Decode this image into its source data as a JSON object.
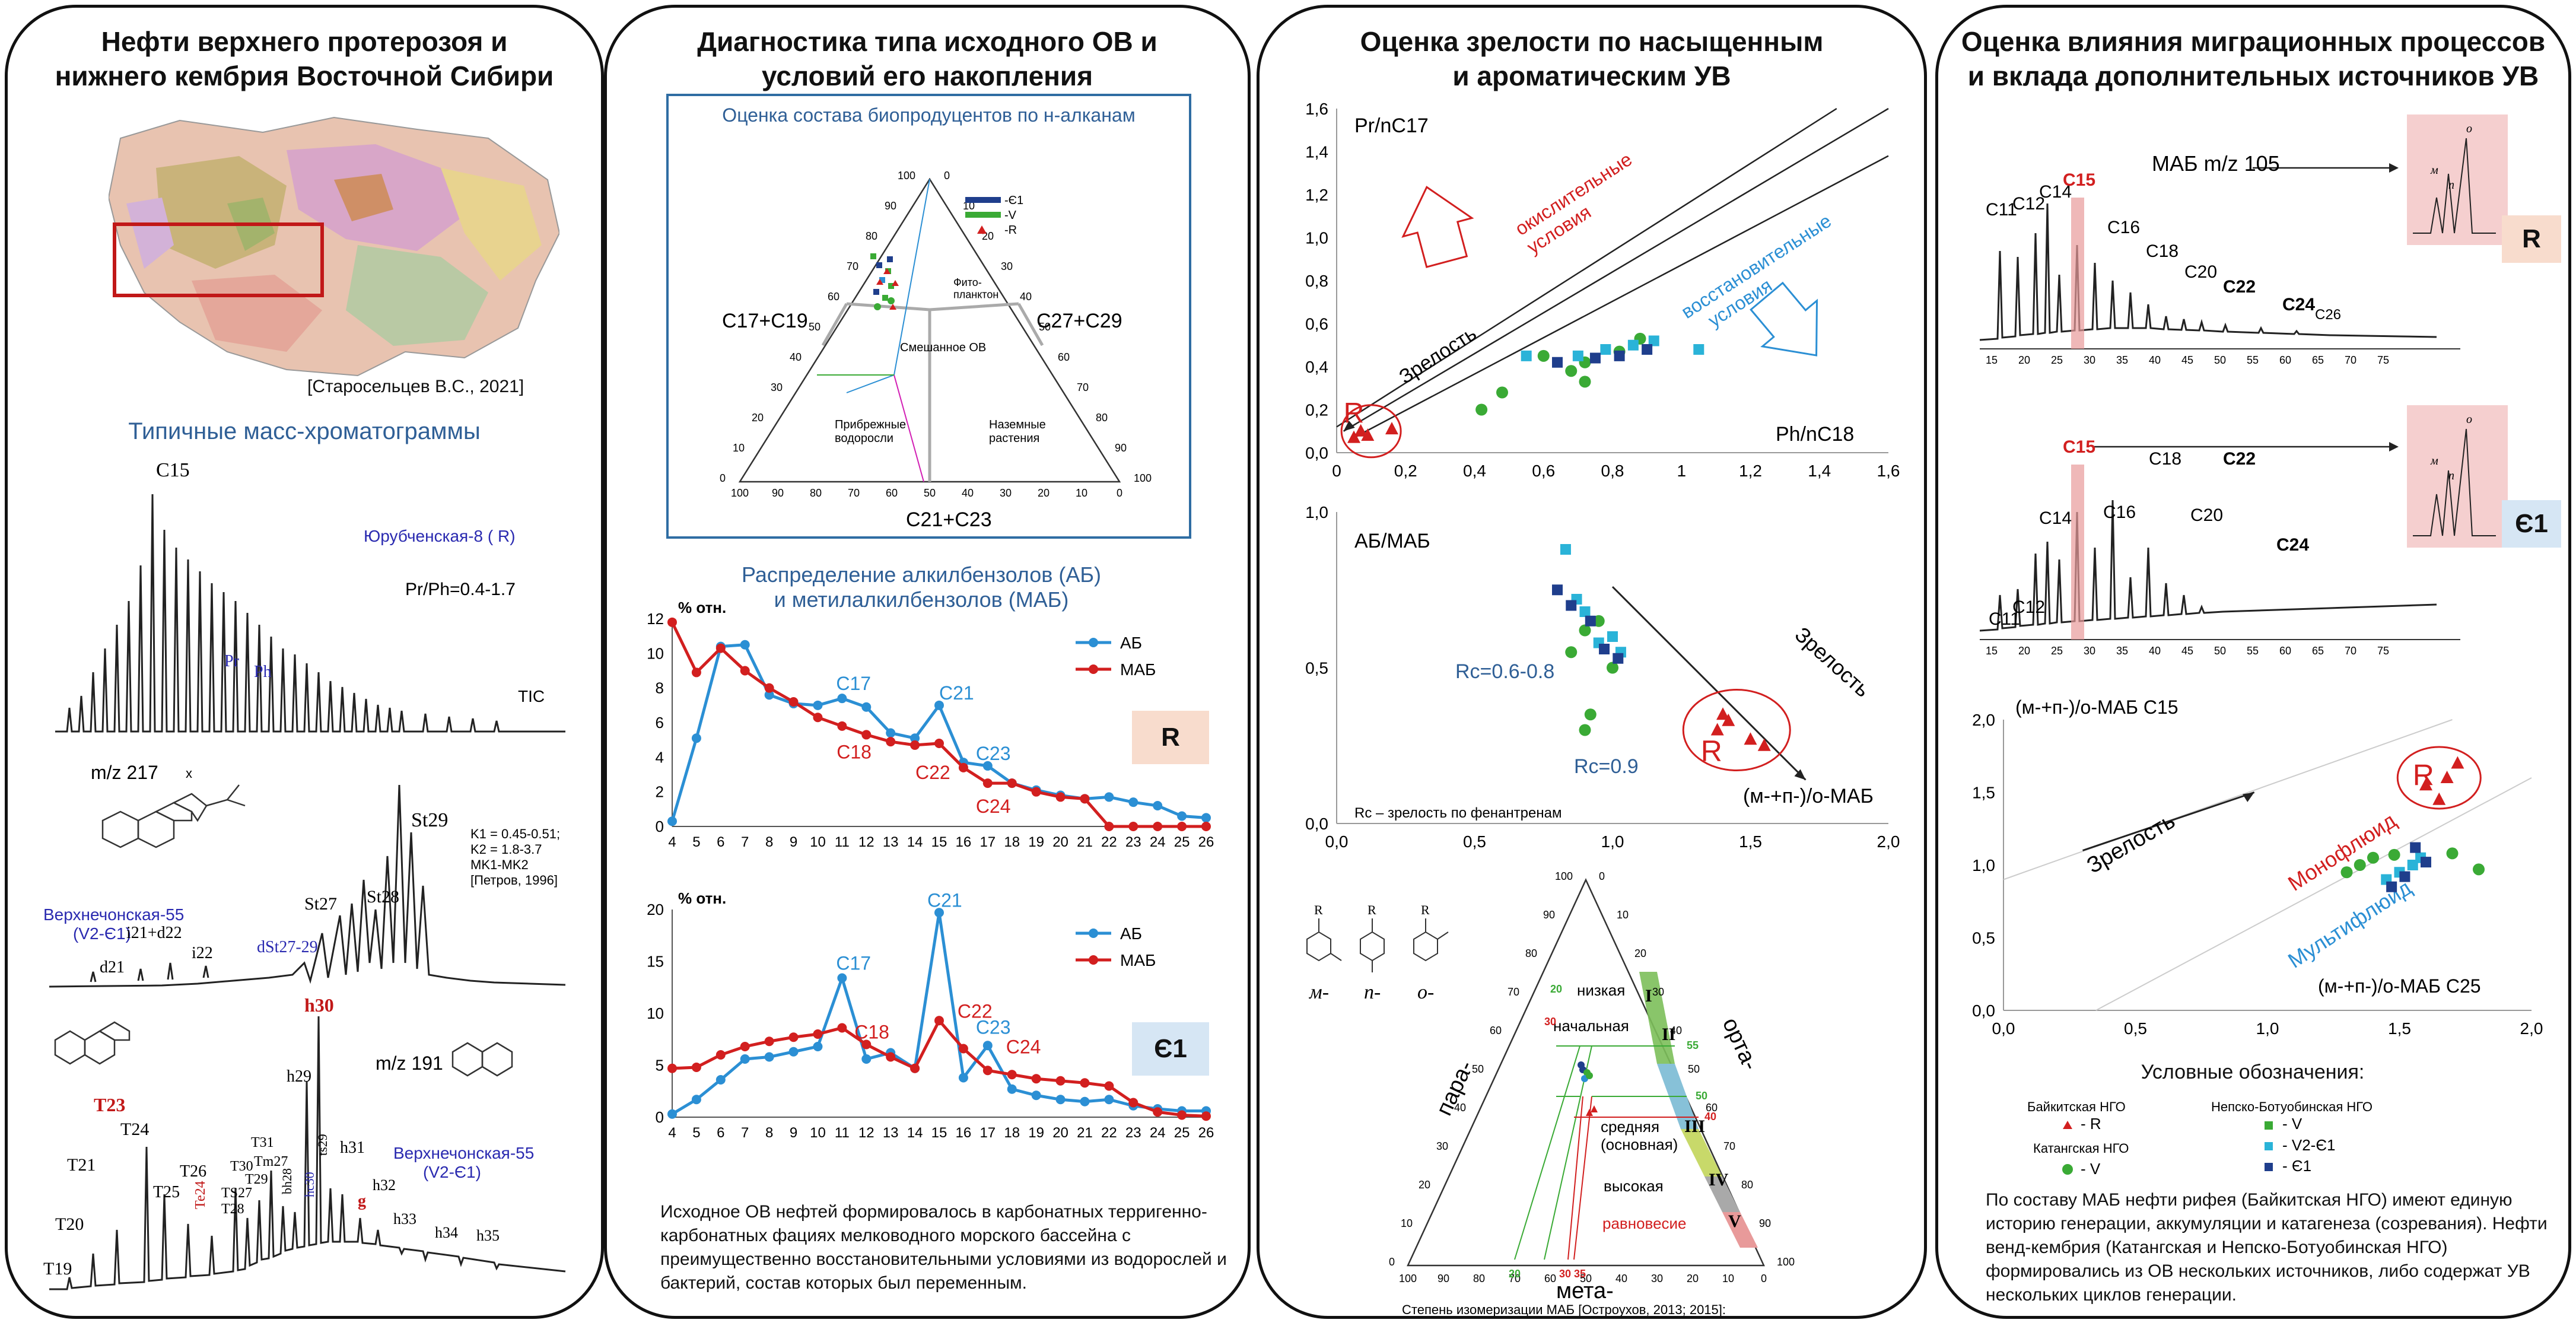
{
  "panels": [
    {
      "title": "Нефти верхнего протерозоя и\nнижнего кембрия Восточной Сибири"
    },
    {
      "title": "Диагностика типа исходного ОВ и\nусловий  его накопления"
    },
    {
      "title": "Оценка зрелости по насыщенным\nи ароматическим УВ"
    },
    {
      "title": "Оценка влияния миграционных процессов\nи вклада дополнительных источников УВ"
    }
  ],
  "p1": {
    "map_citation": "[Старосельцев В.С., 2021]",
    "chromatograms_heading": "Типичные масс-хроматограммы",
    "tic": {
      "c15": "C15",
      "well": "Юрубченская-8 ( R)",
      "ratio": "Pr/Ph=0.4-1.7",
      "pr": "Pr",
      "ph": "Ph",
      "tic": "TIC"
    },
    "m217": {
      "title": "m/z 217",
      "well": "Верхнечонская-55",
      "age": "(V2-Є1)",
      "k1": "K1 = 0.45-0.51;",
      "k2": "K2 = 1.8-3.7",
      "mk": "MK1-MK2",
      "ref": "[Петров, 1996]",
      "st29": "St29",
      "st27": "St27",
      "st28": "St28",
      "i21": "i21+d22",
      "i22": "i22",
      "d21": "d21",
      "dst": "dSt27-29",
      "x": "x"
    },
    "m191": {
      "title": "m/z 191",
      "well": "Верхнечонская-55",
      "age": "(V2-Є1)",
      "h30": "h30",
      "t23": "T23",
      "t24": "T24",
      "t21": "T21",
      "t20": "T20",
      "t19": "T19",
      "t25": "T25",
      "t26": "T26",
      "te24": "Te24",
      "t27": "TS27",
      "t28": "T28",
      "t29": "T29",
      "t30": "T30",
      "t31": "T31",
      "tm27": "Tm27",
      "h29": "h29",
      "bh28": "bh28",
      "ts29": "ts29",
      "h31": "h31",
      "g": "g",
      "h32": "h32",
      "h33": "h33",
      "h34": "h34",
      "h35": "h35",
      "hc30": "hc30"
    }
  },
  "p2": {
    "ternary": {
      "title": "Оценка состава биопродуцентов по н-алканам",
      "left": "C17+C19",
      "right": "C27+C29",
      "bottom": "C21+C23",
      "phyto": "Фито-\nпланктон",
      "mixed": "Смешанное ОВ",
      "coastal": "Прибрежные\nводоросли",
      "land": "Наземные\nрастения",
      "legend": [
        "-Є1",
        "-V",
        "-R"
      ],
      "ticks": [
        "0",
        "10",
        "20",
        "30",
        "40",
        "50",
        "60",
        "70",
        "80",
        "90",
        "100"
      ]
    },
    "ab_heading": "Распределение алкилбензолов (АБ)\nи метилалкилбензолов (МАБ)",
    "badge_r": "R",
    "badge_e": "Є1",
    "summary": "Исходное ОВ нефтей формировалось в карбонатных терригенно-карбонатных фациях мелководного морского бассейна с преимущественно восстановительными условиями из водорослей и бактерий, состав которых был переменным."
  },
  "chart_data": [
    {
      "type": "line",
      "title": "",
      "ylabel": "% отн.",
      "xlabel": "",
      "x": [
        4,
        5,
        6,
        7,
        8,
        9,
        10,
        11,
        12,
        13,
        14,
        15,
        16,
        17,
        18,
        19,
        20,
        21,
        22,
        23,
        24,
        25,
        26
      ],
      "ylim": [
        0,
        12
      ],
      "series": [
        {
          "name": "АБ",
          "values": [
            0.3,
            5.1,
            10.4,
            10.5,
            7.6,
            7.1,
            7.0,
            7.4,
            6.9,
            5.4,
            5.1,
            7.0,
            3.7,
            3.5,
            2.5,
            2.1,
            1.8,
            1.6,
            1.7,
            1.4,
            1.2,
            0.6,
            0.5
          ]
        },
        {
          "name": "МАБ",
          "values": [
            11.8,
            8.9,
            10.3,
            9.0,
            8.0,
            7.2,
            6.3,
            5.8,
            5.3,
            4.9,
            4.7,
            4.8,
            3.4,
            2.5,
            2.5,
            2.0,
            1.7,
            1.6,
            0.0,
            0.0,
            0.0,
            0.0,
            0.0
          ]
        }
      ],
      "annotations": [
        "C17",
        "C18",
        "C21",
        "C22",
        "C23",
        "C24"
      ],
      "badge": "R"
    },
    {
      "type": "line",
      "title": "",
      "ylabel": "% отн.",
      "xlabel": "",
      "x": [
        4,
        5,
        6,
        7,
        8,
        9,
        10,
        11,
        12,
        13,
        14,
        15,
        16,
        17,
        18,
        19,
        20,
        21,
        22,
        23,
        24,
        25,
        26
      ],
      "ylim": [
        0,
        20
      ],
      "series": [
        {
          "name": "АБ",
          "values": [
            0.3,
            1.7,
            3.6,
            5.6,
            5.8,
            6.3,
            6.8,
            13.4,
            5.6,
            6.2,
            4.7,
            19.7,
            3.8,
            6.9,
            2.7,
            2.1,
            1.7,
            1.5,
            1.7,
            1.1,
            0.8,
            0.6,
            0.6
          ]
        },
        {
          "name": "МАБ",
          "values": [
            4.7,
            4.8,
            6.0,
            6.8,
            7.3,
            7.7,
            8.0,
            8.6,
            7.0,
            5.8,
            4.7,
            9.3,
            6.6,
            4.5,
            4.1,
            3.7,
            3.5,
            3.3,
            3.0,
            1.4,
            0.5,
            0.2,
            0.1
          ]
        }
      ],
      "annotations": [
        "C17",
        "C18",
        "C21",
        "C22",
        "C23",
        "C24"
      ],
      "badge": "Є1"
    },
    {
      "type": "scatter",
      "title": "",
      "xlabel": "Ph/nC18",
      "ylabel": "Pr/nC17",
      "xlim": [
        0,
        1.6
      ],
      "ylim": [
        0,
        1.6
      ],
      "series": [
        {
          "name": "R",
          "points": [
            [
              0.05,
              0.07
            ],
            [
              0.07,
              0.1
            ],
            [
              0.09,
              0.08
            ],
            [
              0.16,
              0.11
            ]
          ]
        },
        {
          "name": "V",
          "points": [
            [
              0.42,
              0.2
            ],
            [
              0.48,
              0.28
            ],
            [
              0.6,
              0.45
            ],
            [
              0.68,
              0.38
            ],
            [
              0.72,
              0.42
            ],
            [
              0.82,
              0.47
            ],
            [
              0.88,
              0.53
            ],
            [
              0.72,
              0.33
            ]
          ]
        },
        {
          "name": "V2-Є1",
          "points": [
            [
              0.55,
              0.45
            ],
            [
              0.7,
              0.45
            ],
            [
              0.78,
              0.48
            ],
            [
              0.86,
              0.5
            ],
            [
              0.92,
              0.52
            ],
            [
              1.05,
              0.48
            ]
          ]
        },
        {
          "name": "Є1",
          "points": [
            [
              0.64,
              0.42
            ],
            [
              0.75,
              0.44
            ],
            [
              0.82,
              0.45
            ],
            [
              0.9,
              0.48
            ]
          ]
        }
      ],
      "annotations": [
        "окислительные условия",
        "восстановительные условия",
        "Зрелость",
        "R"
      ]
    },
    {
      "type": "scatter",
      "title": "",
      "xlabel": "(м-+п-)/о-МАБ",
      "ylabel": "АБ/МАБ",
      "xlim": [
        0,
        2.0
      ],
      "ylim": [
        0,
        1.0
      ],
      "series": [
        {
          "name": "R",
          "points": [
            [
              1.38,
              0.3
            ],
            [
              1.42,
              0.33
            ],
            [
              1.5,
              0.27
            ],
            [
              1.55,
              0.25
            ],
            [
              1.4,
              0.35
            ]
          ]
        },
        {
          "name": "V",
          "points": [
            [
              0.9,
              0.3
            ],
            [
              0.92,
              0.35
            ],
            [
              0.85,
              0.55
            ],
            [
              0.9,
              0.62
            ],
            [
              0.95,
              0.65
            ],
            [
              1.0,
              0.5
            ]
          ]
        },
        {
          "name": "V2-Є1",
          "points": [
            [
              0.83,
              0.88
            ],
            [
              0.87,
              0.72
            ],
            [
              0.9,
              0.68
            ],
            [
              0.95,
              0.58
            ],
            [
              1.0,
              0.6
            ],
            [
              1.03,
              0.55
            ]
          ]
        },
        {
          "name": "Є1",
          "points": [
            [
              0.8,
              0.75
            ],
            [
              0.85,
              0.7
            ],
            [
              0.92,
              0.65
            ],
            [
              0.97,
              0.56
            ],
            [
              1.02,
              0.53
            ]
          ]
        }
      ],
      "annotations": [
        "Rc=0.6-0.8",
        "Rc=0.9",
        "Зрелость",
        "R",
        "Rc – зрелость по фенантренам"
      ]
    },
    {
      "type": "scatter",
      "title": "",
      "xlabel": "(м-+п-)/о-МАБ C25",
      "ylabel": "(м-+п-)/о-МАБ C15",
      "xlim": [
        0,
        2.0
      ],
      "ylim": [
        0,
        2.0
      ],
      "series": [
        {
          "name": "R",
          "points": [
            [
              1.6,
              1.55
            ],
            [
              1.65,
              1.45
            ],
            [
              1.68,
              1.6
            ],
            [
              1.72,
              1.7
            ]
          ]
        },
        {
          "name": "V",
          "points": [
            [
              1.3,
              0.95
            ],
            [
              1.35,
              1.0
            ],
            [
              1.4,
              1.05
            ],
            [
              1.48,
              1.07
            ],
            [
              1.7,
              1.08
            ],
            [
              1.8,
              0.97
            ]
          ]
        },
        {
          "name": "V2-Є1",
          "points": [
            [
              1.45,
              0.9
            ],
            [
              1.5,
              0.95
            ],
            [
              1.55,
              1.0
            ],
            [
              1.58,
              1.05
            ]
          ]
        },
        {
          "name": "Є1",
          "points": [
            [
              1.47,
              0.85
            ],
            [
              1.52,
              0.92
            ],
            [
              1.56,
              1.12
            ],
            [
              1.6,
              1.02
            ]
          ]
        }
      ],
      "annotations": [
        "Зрелость",
        "Монофлюид",
        "Мультифлюид",
        "R"
      ]
    }
  ],
  "p3": {
    "scatter1": {
      "ylabel": "Pr/nC17",
      "xlabel": "Ph/nC18",
      "oxid": "окислительные\nусловия",
      "reduc": "восстановительные\nусловия",
      "maturity": "Зрелость",
      "r": "R",
      "yticks": [
        "0,0",
        "0,2",
        "0,4",
        "0,6",
        "0,8",
        "1,0",
        "1,2",
        "1,4",
        "1,6"
      ],
      "xticks": [
        "0",
        "0,2",
        "0,4",
        "0,6",
        "0,8",
        "1",
        "1,2",
        "1,4",
        "1,6"
      ]
    },
    "scatter2": {
      "ylabel": "АБ/МАБ",
      "xlabel": "(м-+п-)/о-МАБ",
      "rc1": "Rc=0.6-0.8",
      "rc2": "Rc=0.9",
      "maturity": "Зрелость",
      "r": "R",
      "note": "Rc – зрелость по фенантренам",
      "yticks": [
        "0,0",
        "0,5",
        "1,0"
      ],
      "xticks": [
        "0,0",
        "0,5",
        "1,0",
        "1,5",
        "2,0"
      ]
    },
    "ternary": {
      "para": "пара-",
      "orto": "орта-",
      "meta": "мета-",
      "m": "м-",
      "n": "n-",
      "o": "o-",
      "zones": [
        "I",
        "II",
        "III",
        "IV",
        "V"
      ],
      "low": "низкая",
      "initial": "начальная",
      "medium": "средняя\n(основная)",
      "high": "высокая",
      "equil": "равновесие",
      "caption": "Степень изомеризации МАБ [Остроухов, 2013; 2015]:",
      "marks": [
        "20",
        "30",
        "55",
        "50",
        "40",
        "20",
        "30 35"
      ],
      "ticks": [
        "0",
        "10",
        "20",
        "30",
        "40",
        "50",
        "60",
        "70",
        "80",
        "90",
        "100"
      ]
    }
  },
  "p4": {
    "chrom1": {
      "title": "МАБ m/z 105",
      "badge": "R",
      "labels": [
        "C11",
        "C12",
        "C14",
        "C15",
        "C16",
        "C18",
        "C20",
        "C22",
        "C24",
        "C26"
      ],
      "xticks": [
        "15",
        "20",
        "25",
        "30",
        "35",
        "40",
        "45",
        "50",
        "55",
        "60",
        "65",
        "70",
        "75"
      ],
      "inset": [
        "o",
        "м",
        "п"
      ]
    },
    "chrom2": {
      "badge": "Є1",
      "labels": [
        "C11",
        "C12",
        "C14",
        "C15",
        "C16",
        "C18",
        "C20",
        "C22",
        "C24"
      ],
      "xticks": [
        "15",
        "20",
        "25",
        "30",
        "35",
        "40",
        "45",
        "50",
        "55",
        "60",
        "65",
        "70",
        "75"
      ],
      "inset": [
        "o",
        "м",
        "п"
      ]
    },
    "scatter3": {
      "ylabel": "(м-+п-)/о-МАБ C15",
      "xlabel": "(м-+п-)/о-МАБ C25",
      "maturity": "Зрелость",
      "mono": "Монофлюид",
      "multi": "Мультифлюид",
      "r": "R",
      "yticks": [
        "0,0",
        "0,5",
        "1,0",
        "1,5",
        "2,0"
      ],
      "xticks": [
        "0,0",
        "0,5",
        "1,0",
        "1,5",
        "2,0"
      ]
    },
    "legend": {
      "title": "Условные обозначения:",
      "baikit": "Байкитская НГО",
      "r": "- R",
      "katang": "Катангская НГО",
      "v": "- V",
      "nepsko": "Непско-Ботуобинская НГО",
      "nv": "- V",
      "nv2": "- V2-Є1",
      "ne1": "- Є1"
    },
    "summary": "По составу МАБ нефти рифея (Байкитская НГО) имеют единую историю генерации, аккумуляции и катагенеза (созревания). Нефти венд-кембрия (Катангская и Непско-Ботуобинская НГО) формировались из ОВ нескольких источников, либо содержат УВ нескольких циклов генерации."
  },
  "colors": {
    "red": "#d21f1f",
    "blue": "#2b8fd4",
    "navy": "#1f3e8c",
    "green": "#3aaa35",
    "teal": "#1aa7c8",
    "box_blue": "#2f6da3",
    "badge_r": "#f8dccd",
    "badge_e": "#d6e6f4"
  }
}
